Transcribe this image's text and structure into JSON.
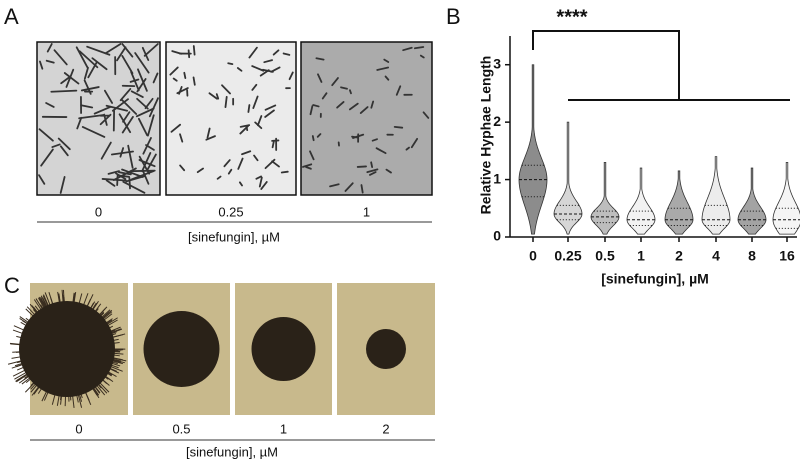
{
  "panel_labels": [
    "A",
    "B",
    "C"
  ],
  "panel_a": {
    "conditions": [
      "0",
      "0.25",
      "1"
    ],
    "axis_label": "[sinefungin], µM"
  },
  "chart_data": {
    "type": "violin",
    "ylabel": "Relative Hyphae Length",
    "xlabel": "[sinefungin], µM",
    "annotation": "****",
    "categories": [
      "0",
      "0.25",
      "0.5",
      "1",
      "2",
      "4",
      "8",
      "16"
    ],
    "median": [
      1.0,
      0.4,
      0.35,
      0.3,
      0.3,
      0.3,
      0.3,
      0.3
    ],
    "q1": [
      0.7,
      0.3,
      0.25,
      0.2,
      0.2,
      0.2,
      0.2,
      0.15
    ],
    "q3": [
      1.25,
      0.55,
      0.45,
      0.45,
      0.5,
      0.55,
      0.45,
      0.5
    ],
    "min": [
      0.05,
      0.05,
      0.05,
      0.05,
      0.05,
      0.05,
      0.05,
      0.05
    ],
    "max": [
      3.0,
      2.0,
      1.3,
      1.2,
      1.15,
      1.4,
      1.2,
      1.3
    ],
    "colors": [
      "#8c8c8c",
      "#d6d6d6",
      "#bdbdbd",
      "#f2f2f2",
      "#a9a9a9",
      "#ececec",
      "#a3a3a3",
      "#f5f5f5"
    ],
    "ylim": [
      0,
      3.5
    ],
    "yticks": [
      0,
      1,
      2,
      3
    ]
  },
  "panel_c": {
    "conditions": [
      "0",
      "0.5",
      "1",
      "2"
    ],
    "axis_label": "[sinefungin], µM"
  }
}
